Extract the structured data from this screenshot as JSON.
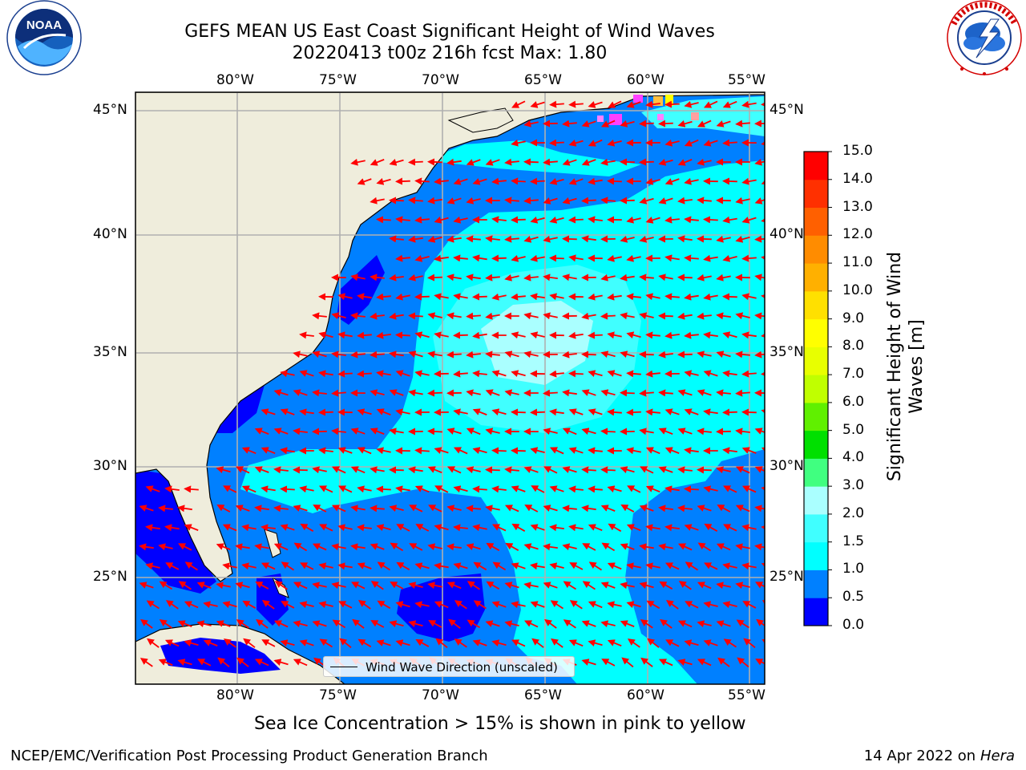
{
  "title": {
    "line1": "GEFS MEAN US East Coast Significant Height of Wind Waves",
    "line2": "20220413 t00z 216h fcst   Max: 1.80"
  },
  "logos": {
    "left": {
      "name": "NOAA",
      "text": "NOAA",
      "ring_text": "NATIONAL OCEANIC AND ATMOSPHERIC ADMINISTRATION · U.S. DEPARTMENT OF COMMERCE"
    },
    "right": {
      "name": "National Weather Service",
      "ring_text": "NATIONAL WEATHER SERVICE"
    }
  },
  "map": {
    "projection": "Mercator",
    "lon_range": [
      -85,
      -54.5
    ],
    "lat_range": [
      20.5,
      45.8
    ],
    "lon_ticks": [
      "80°W",
      "75°W",
      "70°W",
      "65°W",
      "60°W",
      "55°W"
    ],
    "lat_ticks": [
      "45°N",
      "40°N",
      "35°N",
      "30°N",
      "25°N"
    ],
    "grid": true,
    "land_color": "#efeddc",
    "arrow_color": "#ff0000",
    "dominant_direction": "west-southwest",
    "legend": {
      "label": "Wind Wave Direction (unscaled)",
      "placement": "bottom-center"
    }
  },
  "colorbar": {
    "label": "Significant Height of Wind Waves [m]",
    "ticks": [
      "15.0",
      "14.0",
      "13.0",
      "12.0",
      "11.0",
      "10.0",
      "9.0",
      "8.0",
      "7.0",
      "6.0",
      "5.0",
      "4.0",
      "3.0",
      "2.0",
      "1.5",
      "1.0",
      "0.5",
      "0.0"
    ],
    "bins": [
      {
        "from": 0.0,
        "to": 0.5,
        "color": "#0000ff"
      },
      {
        "from": 0.5,
        "to": 1.0,
        "color": "#0080ff"
      },
      {
        "from": 1.0,
        "to": 1.5,
        "color": "#00ffff"
      },
      {
        "from": 1.5,
        "to": 2.0,
        "color": "#40ffff"
      },
      {
        "from": 2.0,
        "to": 3.0,
        "color": "#aaffff"
      },
      {
        "from": 3.0,
        "to": 4.0,
        "color": "#40ff80"
      },
      {
        "from": 4.0,
        "to": 5.0,
        "color": "#00e000"
      },
      {
        "from": 5.0,
        "to": 6.0,
        "color": "#60f000"
      },
      {
        "from": 6.0,
        "to": 7.0,
        "color": "#c0ff00"
      },
      {
        "from": 7.0,
        "to": 8.0,
        "color": "#e8ff00"
      },
      {
        "from": 8.0,
        "to": 9.0,
        "color": "#ffff00"
      },
      {
        "from": 9.0,
        "to": 10.0,
        "color": "#ffe000"
      },
      {
        "from": 10.0,
        "to": 11.0,
        "color": "#ffb000"
      },
      {
        "from": 11.0,
        "to": 12.0,
        "color": "#ff8c00"
      },
      {
        "from": 12.0,
        "to": 13.0,
        "color": "#ff6000"
      },
      {
        "from": 13.0,
        "to": 14.0,
        "color": "#ff3000"
      },
      {
        "from": 14.0,
        "to": 15.0,
        "color": "#ff0000"
      }
    ]
  },
  "caption": "Sea Ice Concentration > 15% is shown in pink to yellow",
  "footer": {
    "left": "NCEP/EMC/Verification Post Processing Product Generation Branch",
    "right_prefix": "14 Apr 2022 on ",
    "right_host": "Hera"
  }
}
